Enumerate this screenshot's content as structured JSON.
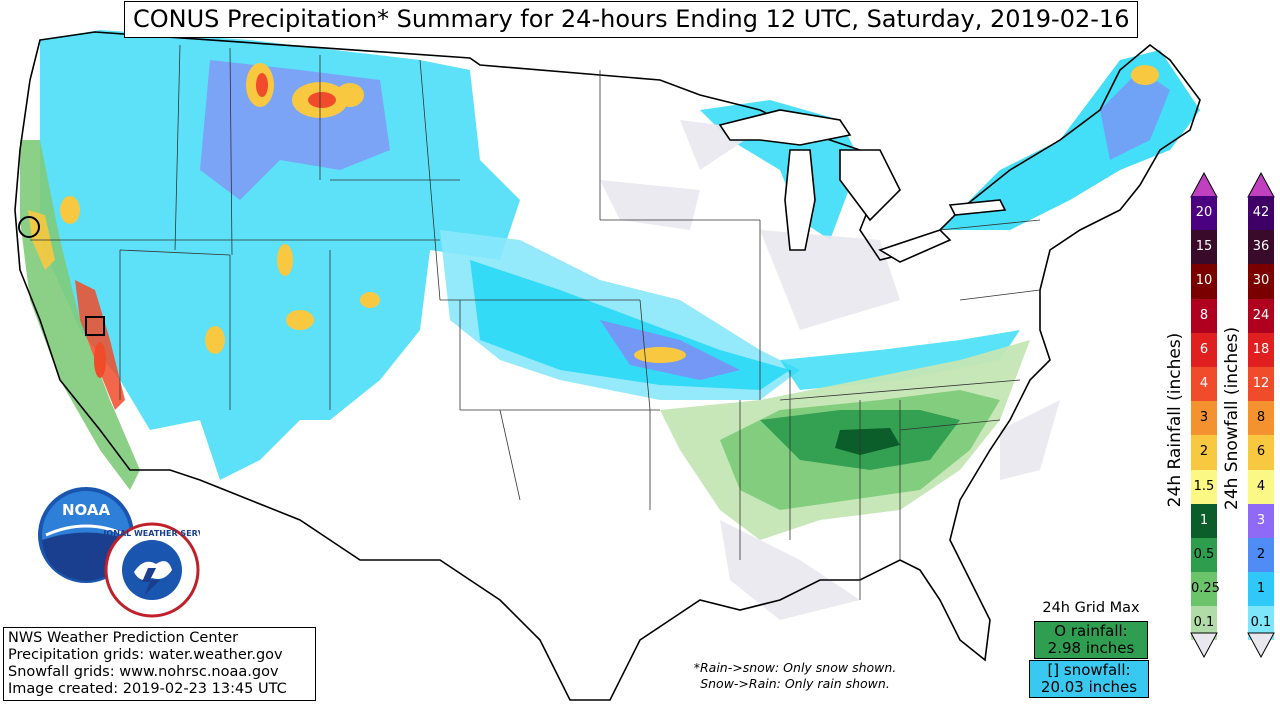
{
  "title": "CONUS Precipitation* Summary for 24-hours Ending 12 UTC, Saturday, 2019-02-16",
  "credits": [
    "NWS Weather Prediction Center",
    "Precipitation grids: water.weather.gov",
    "Snowfall grids: www.nohrsc.noaa.gov",
    "Image created: 2019-02-23 13:45 UTC"
  ],
  "note": [
    "*Rain->snow: Only snow shown.",
    "Snow->Rain: Only rain shown."
  ],
  "grid_max": {
    "heading": "24h Grid Max",
    "rain_line1": "O rainfall:",
    "rain_line2": "2.98 inches",
    "snow_line1": "[] snowfall:",
    "snow_line2": "20.03 inches"
  },
  "rain_scale": {
    "label": "24h Rainfall (inches)",
    "levels": [
      {
        "value": "20",
        "color": "#4b0082",
        "light": true
      },
      {
        "value": "15",
        "color": "#3a0a2a",
        "light": true
      },
      {
        "value": "10",
        "color": "#7a0000",
        "light": true
      },
      {
        "value": "8",
        "color": "#b00020",
        "light": true
      },
      {
        "value": "6",
        "color": "#e02020",
        "light": true
      },
      {
        "value": "4",
        "color": "#f04b2a",
        "light": true
      },
      {
        "value": "3",
        "color": "#f4922f",
        "light": false
      },
      {
        "value": "2",
        "color": "#f8c840",
        "light": false
      },
      {
        "value": "1.5",
        "color": "#fbf886",
        "light": false
      },
      {
        "value": "1",
        "color": "#0b5e2a",
        "light": true
      },
      {
        "value": "0.5",
        "color": "#2e9e4e",
        "light": false
      },
      {
        "value": "0.25",
        "color": "#6cc46a",
        "light": false
      },
      {
        "value": "0.1",
        "color": "#b2dca7",
        "light": false
      }
    ]
  },
  "snow_scale": {
    "label": "24h Snowfall (inches)",
    "levels": [
      {
        "value": "42",
        "color": "#3e0066",
        "light": true
      },
      {
        "value": "36",
        "color": "#3a0a2a",
        "light": true
      },
      {
        "value": "30",
        "color": "#7a0000",
        "light": true
      },
      {
        "value": "24",
        "color": "#b00020",
        "light": true
      },
      {
        "value": "18",
        "color": "#e02020",
        "light": true
      },
      {
        "value": "12",
        "color": "#f04b2a",
        "light": true
      },
      {
        "value": "8",
        "color": "#f4922f",
        "light": false
      },
      {
        "value": "6",
        "color": "#f8c840",
        "light": false
      },
      {
        "value": "4",
        "color": "#fbf886",
        "light": false
      },
      {
        "value": "3",
        "color": "#8e6af6",
        "light": true
      },
      {
        "value": "2",
        "color": "#4f8cf6",
        "light": false
      },
      {
        "value": "1",
        "color": "#2fc8f8",
        "light": false
      },
      {
        "value": "0.1",
        "color": "#7ee6fb",
        "light": false
      }
    ]
  },
  "colors": {
    "snow_light": "#88e8fb",
    "snow_mid": "#22d8f6",
    "snow_heavy": "#8f7cf4",
    "rain_light": "#c4e6b4",
    "rain_mid": "#7fcb7a",
    "rain_heavy": "#2f9e50",
    "trace": "#e8e8ee",
    "hot": "#f8c840"
  },
  "logos": {
    "noaa": "NOAA",
    "nws": "NATIONAL WEATHER SERVICE"
  }
}
